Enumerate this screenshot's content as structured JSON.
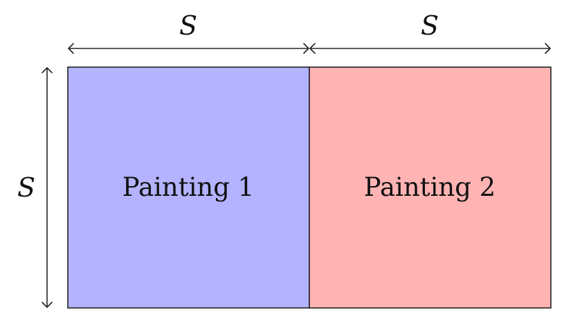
{
  "dimensions": {
    "top_left_label": "S",
    "top_right_label": "S",
    "left_label": "S"
  },
  "panels": [
    {
      "label": "Painting 1",
      "color": "#b3b3ff"
    },
    {
      "label": "Painting 2",
      "color": "#ffb3b3"
    }
  ],
  "colors": {
    "stroke": "#222222"
  }
}
